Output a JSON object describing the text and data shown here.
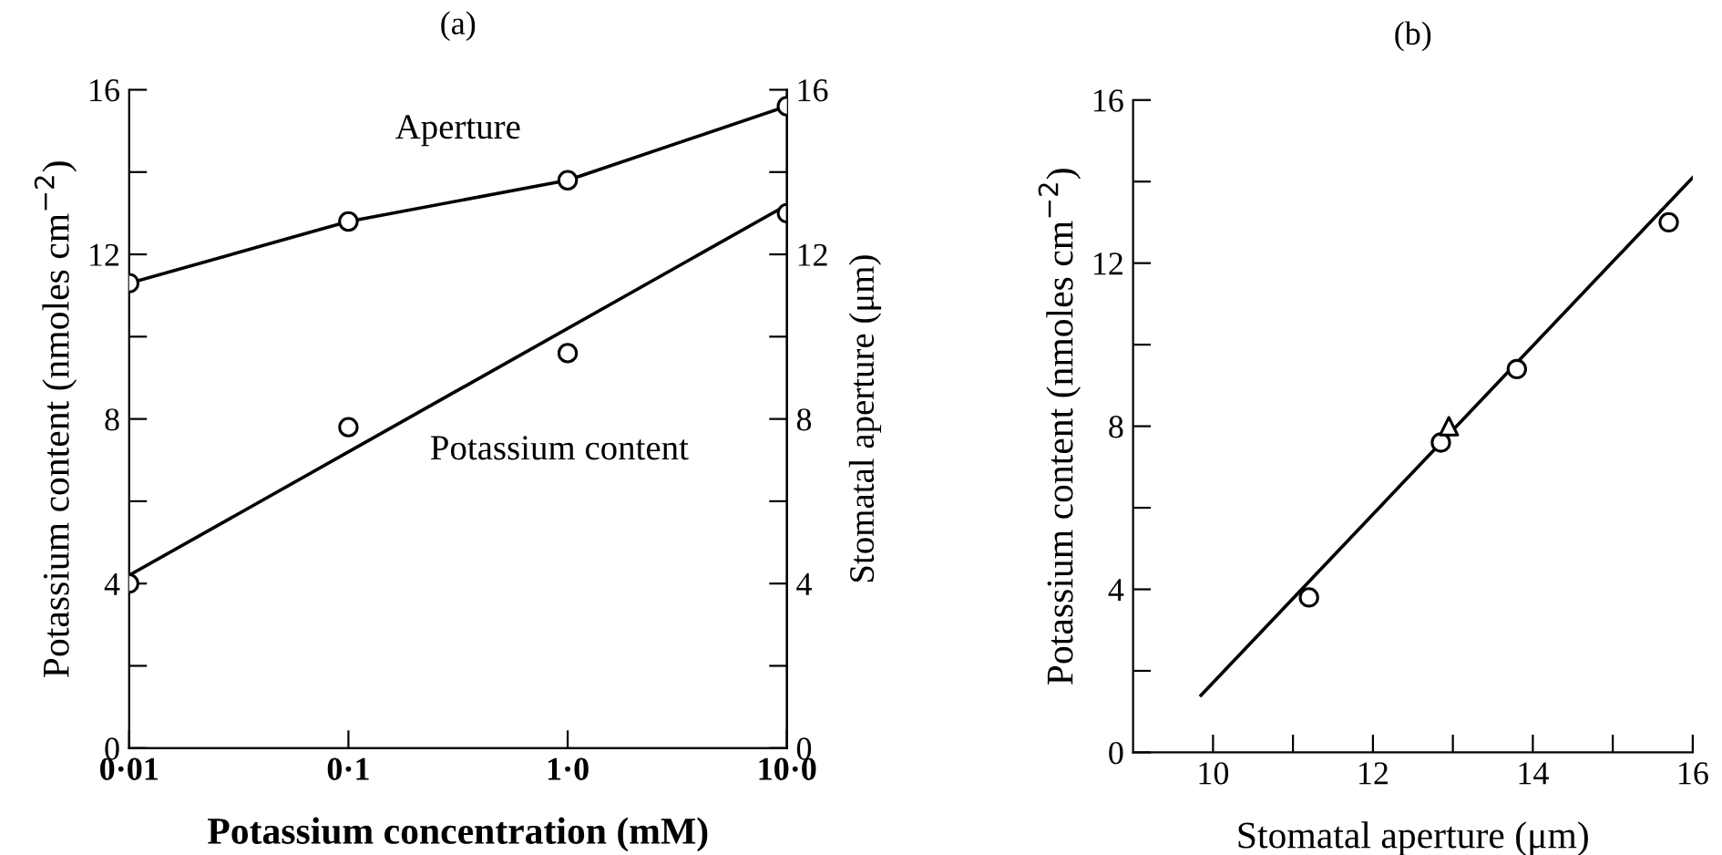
{
  "chart_data": [
    {
      "type": "line",
      "title": "(a)",
      "xlabel": "Potassium concentration (mM)",
      "ylabel": "Potassium content (nmoles cm$^{−2}$)",
      "y2label": "Stomatal aperture (μm)",
      "categories": [
        "0·01",
        "0·1",
        "1·0",
        "10·0"
      ],
      "ylim": [
        0,
        16
      ],
      "yticks": [
        0,
        {
          "value": 2,
          "label": null
        },
        4,
        {
          "value": 6,
          "label": null
        },
        8,
        {
          "value": 10,
          "label": null
        },
        12,
        {
          "value": 14,
          "label": null
        },
        16
      ],
      "y2lim": [
        0,
        16
      ],
      "y2ticks": [
        0,
        {
          "value": 2,
          "label": null
        },
        4,
        {
          "value": 6,
          "label": null
        },
        8,
        {
          "value": 10,
          "label": null
        },
        12,
        {
          "value": 14,
          "label": null
        },
        16
      ],
      "series": [
        {
          "name": "Aperture",
          "axis": "y2",
          "color": "#000000",
          "marker": "circle",
          "values": [
            11.3,
            12.8,
            13.8,
            15.6
          ]
        },
        {
          "name": "Potassium content",
          "type": "scatter",
          "axis": "y",
          "color": "#000000",
          "marker": "circle",
          "values": [
            4.0,
            7.8,
            9.6,
            13.0
          ]
        },
        {
          "axis": "y",
          "color": "#000000",
          "marker": "none",
          "x": [
            "0·01",
            "10·0"
          ],
          "values": [
            4.2,
            13.2
          ]
        }
      ]
    },
    {
      "type": "scatter",
      "title": "(b)",
      "xlabel": "Stomatal aperture (μm)",
      "ylabel": "Potassium content (nmoles cm$^{−2}$)",
      "xlim": [
        9,
        16
      ],
      "xticks": [
        10,
        {
          "value": 11,
          "label": null
        },
        12,
        {
          "value": 13,
          "label": null
        },
        14,
        {
          "value": 15,
          "label": null
        },
        16
      ],
      "ylim": [
        0,
        16
      ],
      "yticks": [
        0,
        {
          "value": 2,
          "label": null
        },
        4,
        {
          "value": 6,
          "label": null
        },
        8,
        {
          "value": 10,
          "label": null
        },
        12,
        {
          "value": 14,
          "label": null
        },
        16
      ],
      "series": [
        {
          "color": "#000000",
          "marker": "circle",
          "x": [
            11.2,
            12.85,
            13.8,
            15.7
          ],
          "values": [
            3.8,
            7.6,
            9.4,
            13.0
          ]
        },
        {
          "color": "#000000",
          "marker": "triangle",
          "x": [
            12.95
          ],
          "values": [
            8.0
          ]
        },
        {
          "type": "line",
          "color": "#000000",
          "marker": "none",
          "x": [
            9.85,
            16.0
          ],
          "values": [
            1.4,
            14.1
          ]
        }
      ]
    }
  ]
}
